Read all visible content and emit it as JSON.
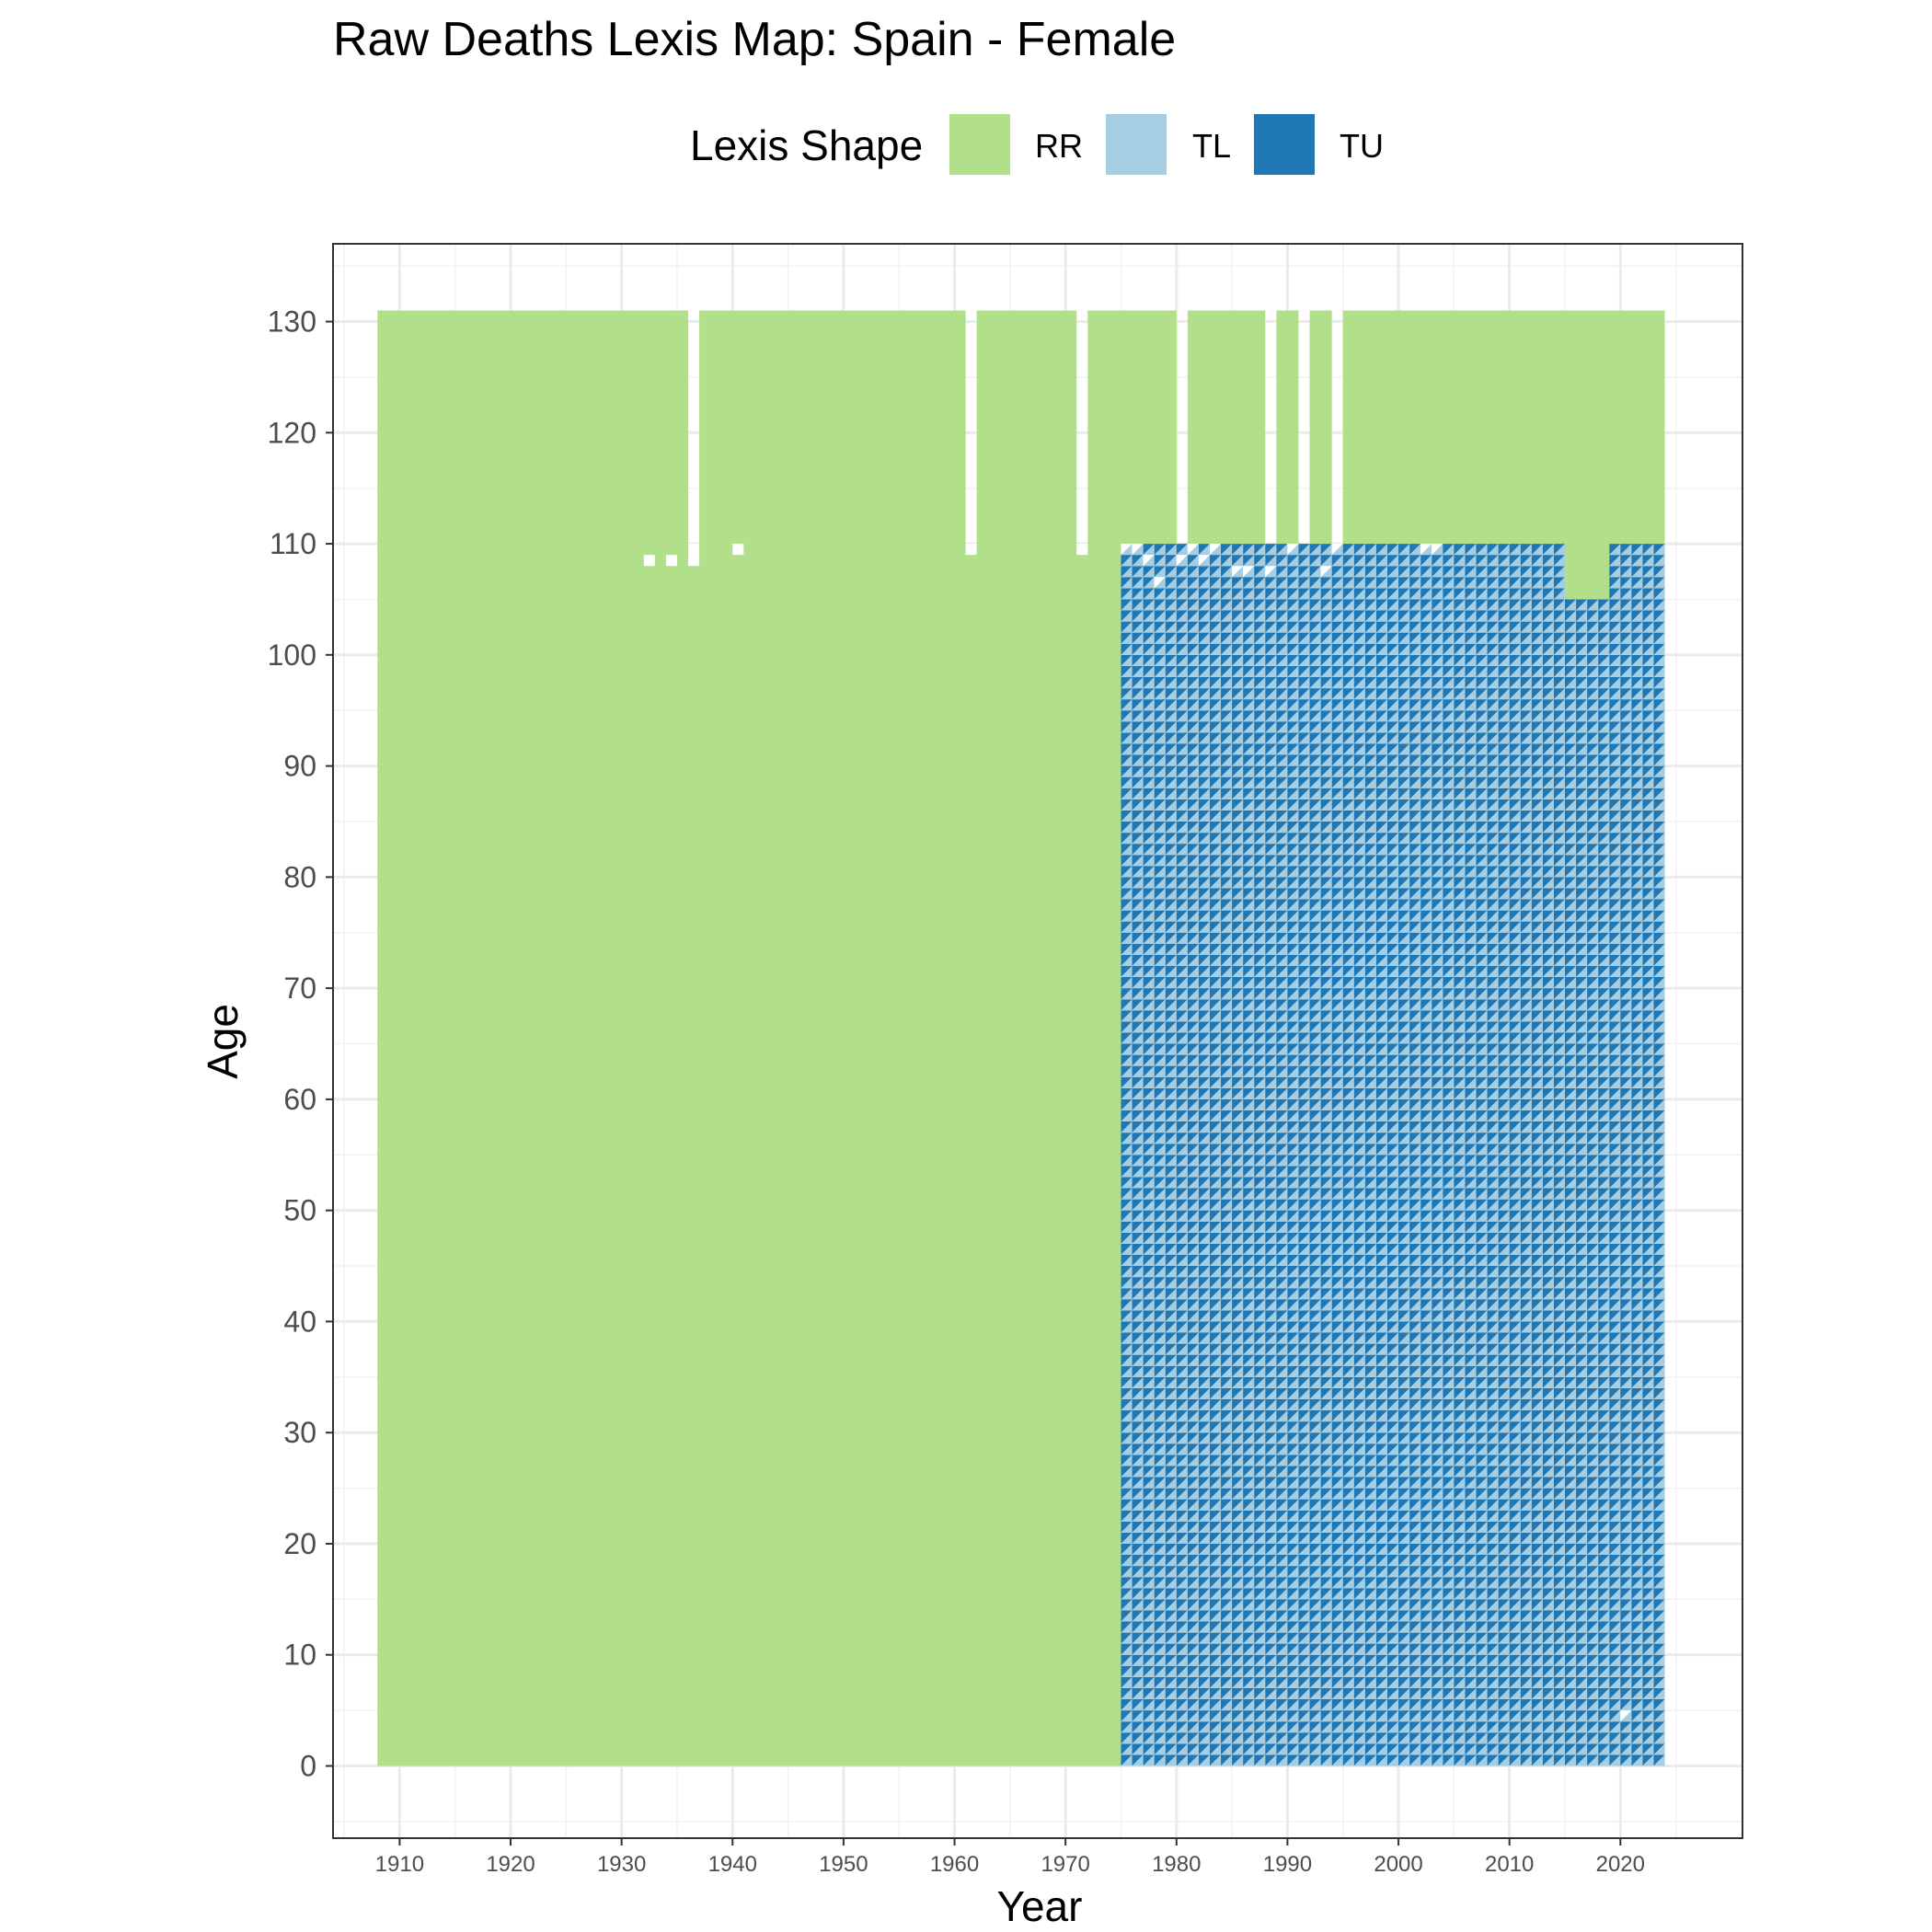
{
  "chart_data": {
    "type": "heatmap",
    "title": "Raw Deaths Lexis Map: Spain - Female",
    "xlabel": "Year",
    "ylabel": "Age",
    "xlim": [
      1904,
      2031
    ],
    "ylim": [
      -6.5,
      137
    ],
    "x_ticks": [
      "1910",
      "1920",
      "1930",
      "1940",
      "1950",
      "1960",
      "1970",
      "1980",
      "1990",
      "2000",
      "2010",
      "2020"
    ],
    "x_tick_values": [
      1910,
      1920,
      1930,
      1940,
      1950,
      1960,
      1970,
      1980,
      1990,
      2000,
      2010,
      2020
    ],
    "y_ticks": [
      "0",
      "10",
      "20",
      "30",
      "40",
      "50",
      "60",
      "70",
      "80",
      "90",
      "100",
      "110",
      "120",
      "130"
    ],
    "y_tick_values": [
      0,
      10,
      20,
      30,
      40,
      50,
      60,
      70,
      80,
      90,
      100,
      110,
      120,
      130
    ],
    "grid": true,
    "legend": {
      "title": "Lexis Shape",
      "position": "top",
      "entries": [
        {
          "label": "RR",
          "color": "#b2df8a"
        },
        {
          "label": "TL",
          "color": "#a6cee3"
        },
        {
          "label": "TU",
          "color": "#1f78b4"
        }
      ]
    },
    "colors": {
      "RR": "#b2df8a",
      "TL": "#a6cee3",
      "TU": "#1f78b4"
    },
    "rr_blocks": [
      {
        "year_start": 1908,
        "year_end": 1975,
        "age_start": 0,
        "age_end": 110
      },
      {
        "year_start": 1908,
        "year_end": 1936,
        "age_start": 110,
        "age_end": 131
      },
      {
        "year_start": 1937,
        "year_end": 1961,
        "age_start": 110,
        "age_end": 131
      },
      {
        "year_start": 1962,
        "year_end": 1971,
        "age_start": 110,
        "age_end": 131
      },
      {
        "year_start": 1972,
        "year_end": 1980,
        "age_start": 110,
        "age_end": 131
      },
      {
        "year_start": 1981,
        "year_end": 1988,
        "age_start": 110,
        "age_end": 131
      },
      {
        "year_start": 1989,
        "year_end": 1991,
        "age_start": 110,
        "age_end": 131
      },
      {
        "year_start": 1992,
        "year_end": 1994,
        "age_start": 110,
        "age_end": 131
      },
      {
        "year_start": 1995,
        "year_end": 2024,
        "age_start": 110,
        "age_end": 131
      },
      {
        "year_start": 2015,
        "year_end": 2019,
        "age_start": 105,
        "age_end": 110
      }
    ],
    "triangle_region": {
      "year_start": 1975,
      "year_end": 2024,
      "age_start": 0,
      "age_end": 110
    },
    "rr_excluded_in_triangle_region": {
      "year_start": 2015,
      "year_end": 2019,
      "age_start": 105,
      "age_end": 110
    },
    "missing_cells": [
      {
        "year": 1936,
        "age": 109
      },
      {
        "year": 1936,
        "age": 108
      },
      {
        "year": 1961,
        "age": 109
      },
      {
        "year": 1971,
        "age": 109
      },
      {
        "year": 1932,
        "age": 108
      },
      {
        "year": 1934,
        "age": 108
      },
      {
        "year": 1940,
        "age": 109
      },
      {
        "year": 1975,
        "age": 109
      },
      {
        "year": 1976,
        "age": 109
      },
      {
        "year": 1977,
        "age": 108
      },
      {
        "year": 1978,
        "age": 106
      },
      {
        "year": 1980,
        "age": 108
      },
      {
        "year": 1981,
        "age": 109
      },
      {
        "year": 1982,
        "age": 108
      },
      {
        "year": 1983,
        "age": 109
      },
      {
        "year": 1985,
        "age": 107
      },
      {
        "year": 1986,
        "age": 107
      },
      {
        "year": 1988,
        "age": 107
      },
      {
        "year": 1990,
        "age": 109
      },
      {
        "year": 1993,
        "age": 107
      },
      {
        "year": 1994,
        "age": 109
      },
      {
        "year": 2002,
        "age": 109
      },
      {
        "year": 2003,
        "age": 109
      },
      {
        "year": 2020,
        "age": 4
      }
    ]
  }
}
